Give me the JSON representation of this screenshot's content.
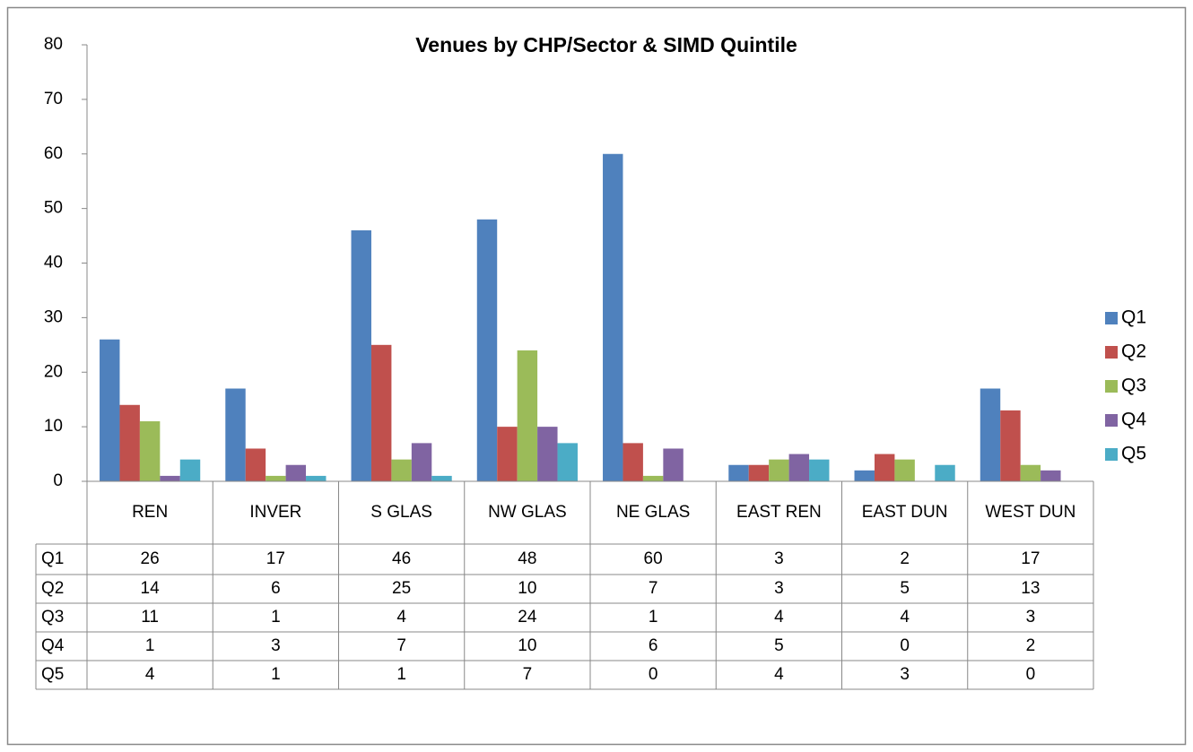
{
  "chart_data": {
    "type": "bar",
    "title": "Venues by CHP/Sector & SIMD Quintile",
    "categories": [
      "REN",
      "INVER",
      "S GLAS",
      "NW GLAS",
      "NE GLAS",
      "EAST REN",
      "EAST DUN",
      "WEST DUN"
    ],
    "series": [
      {
        "name": "Q1",
        "color": "#4f81bd",
        "values": [
          26,
          17,
          46,
          48,
          60,
          3,
          2,
          17
        ]
      },
      {
        "name": "Q2",
        "color": "#c0504d",
        "values": [
          14,
          6,
          25,
          10,
          7,
          3,
          5,
          13
        ]
      },
      {
        "name": "Q3",
        "color": "#9bbb59",
        "values": [
          11,
          1,
          4,
          24,
          1,
          4,
          4,
          3
        ]
      },
      {
        "name": "Q4",
        "color": "#8064a2",
        "values": [
          1,
          3,
          7,
          10,
          6,
          5,
          0,
          2
        ]
      },
      {
        "name": "Q5",
        "color": "#4bacc6",
        "values": [
          4,
          1,
          1,
          7,
          0,
          4,
          3,
          0
        ]
      }
    ],
    "ylim": [
      0,
      80
    ],
    "yticks": [
      0,
      10,
      20,
      30,
      40,
      50,
      60,
      70,
      80
    ],
    "grid": false,
    "legend": "right",
    "data_table": true
  }
}
